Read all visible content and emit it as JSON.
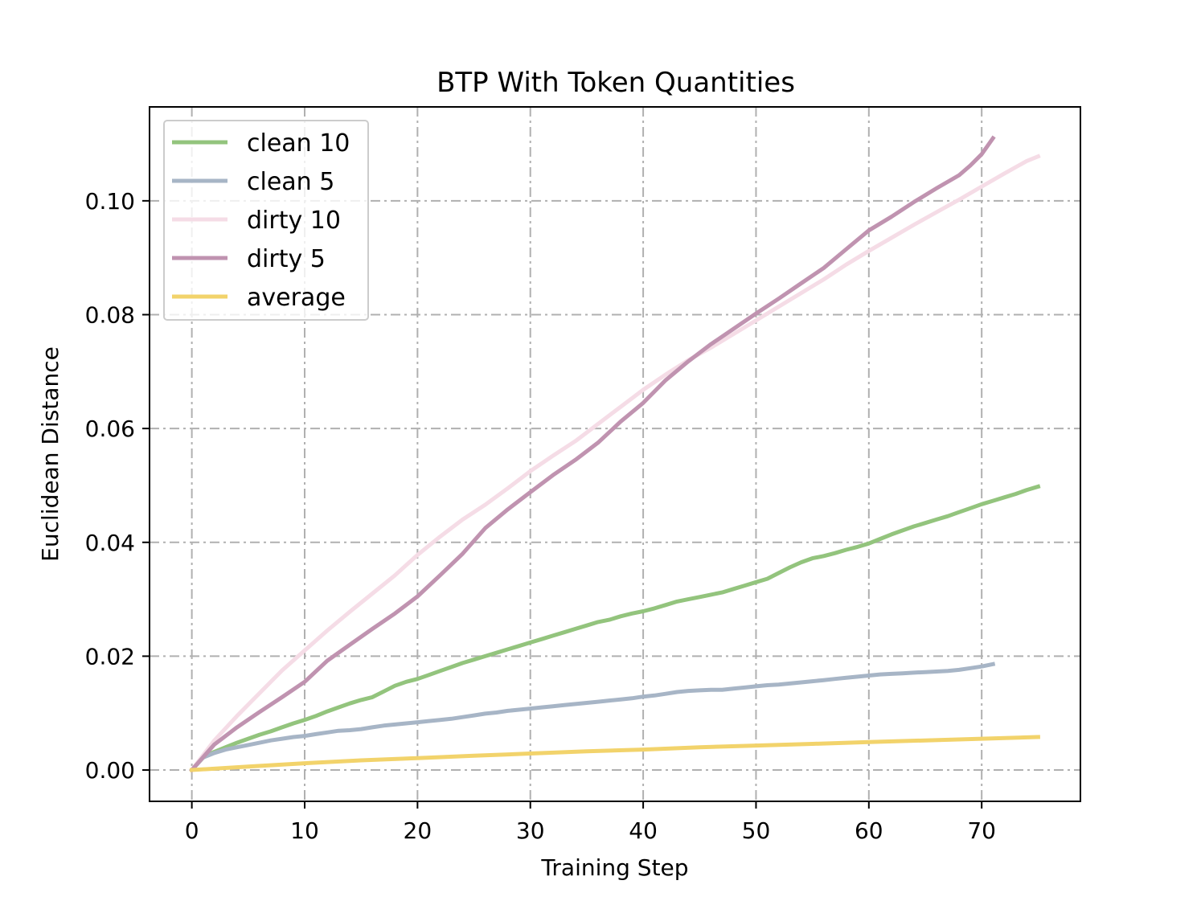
{
  "chart_data": {
    "type": "line",
    "title": "BTP With Token Quantities",
    "xlabel": "Training Step",
    "ylabel": "Euclidean Distance",
    "xlim": [
      -3.75,
      78.75
    ],
    "ylim": [
      -0.0055,
      0.1165
    ],
    "xticks": [
      0,
      10,
      20,
      30,
      40,
      50,
      60,
      70
    ],
    "xtick_labels": [
      "0",
      "10",
      "20",
      "30",
      "40",
      "50",
      "60",
      "70"
    ],
    "yticks": [
      0.0,
      0.02,
      0.04,
      0.06,
      0.08,
      0.1
    ],
    "ytick_labels": [
      "0.00",
      "0.02",
      "0.04",
      "0.06",
      "0.08",
      "0.10"
    ],
    "grid": true,
    "legend_position": "top-left",
    "series": [
      {
        "name": "clean 10",
        "color": "#93c47d",
        "x": [
          0,
          1,
          2,
          3,
          4,
          5,
          6,
          7,
          8,
          9,
          10,
          11,
          12,
          13,
          14,
          15,
          16,
          17,
          18,
          19,
          20,
          21,
          22,
          23,
          24,
          25,
          26,
          27,
          28,
          29,
          30,
          31,
          32,
          33,
          34,
          35,
          36,
          37,
          38,
          39,
          40,
          41,
          42,
          43,
          44,
          45,
          46,
          47,
          48,
          49,
          50,
          51,
          52,
          53,
          54,
          55,
          56,
          57,
          58,
          59,
          60,
          61,
          62,
          63,
          64,
          65,
          66,
          67,
          68,
          69,
          70,
          71,
          72,
          73,
          74,
          75
        ],
        "y": [
          0.0,
          0.0022,
          0.0032,
          0.004,
          0.0048,
          0.0055,
          0.0062,
          0.0068,
          0.0075,
          0.0082,
          0.0088,
          0.0095,
          0.0103,
          0.011,
          0.0117,
          0.0123,
          0.0128,
          0.0138,
          0.0148,
          0.0155,
          0.016,
          0.0167,
          0.0174,
          0.0181,
          0.0188,
          0.0194,
          0.02,
          0.0206,
          0.0212,
          0.0218,
          0.0224,
          0.023,
          0.0236,
          0.0242,
          0.0248,
          0.0254,
          0.026,
          0.0264,
          0.027,
          0.0275,
          0.0279,
          0.0284,
          0.029,
          0.0296,
          0.03,
          0.0304,
          0.0308,
          0.0312,
          0.0318,
          0.0324,
          0.033,
          0.0336,
          0.0346,
          0.0356,
          0.0365,
          0.0372,
          0.0376,
          0.0381,
          0.0387,
          0.0392,
          0.0398,
          0.0406,
          0.0414,
          0.0421,
          0.0428,
          0.0434,
          0.044,
          0.0446,
          0.0453,
          0.046,
          0.0467,
          0.0473,
          0.0479,
          0.0485,
          0.0492,
          0.0498
        ]
      },
      {
        "name": "clean 5",
        "color": "#a7b5c6",
        "x": [
          0,
          1,
          2,
          3,
          4,
          5,
          6,
          7,
          8,
          9,
          10,
          11,
          12,
          13,
          14,
          15,
          16,
          17,
          18,
          19,
          20,
          21,
          22,
          23,
          24,
          25,
          26,
          27,
          28,
          29,
          30,
          31,
          32,
          33,
          34,
          35,
          36,
          37,
          38,
          39,
          40,
          41,
          42,
          43,
          44,
          45,
          46,
          47,
          48,
          49,
          50,
          51,
          52,
          53,
          54,
          55,
          56,
          57,
          58,
          59,
          60,
          61,
          62,
          63,
          64,
          65,
          66,
          67,
          68,
          69,
          70,
          71
        ],
        "y": [
          0.0,
          0.0022,
          0.003,
          0.0036,
          0.004,
          0.0044,
          0.0048,
          0.0052,
          0.0055,
          0.0058,
          0.006,
          0.0063,
          0.0066,
          0.0069,
          0.007,
          0.0072,
          0.0075,
          0.0078,
          0.008,
          0.0082,
          0.0084,
          0.0086,
          0.0088,
          0.009,
          0.0093,
          0.0096,
          0.0099,
          0.0101,
          0.0104,
          0.0106,
          0.0108,
          0.011,
          0.0112,
          0.0114,
          0.0116,
          0.0118,
          0.012,
          0.0122,
          0.0124,
          0.0126,
          0.0129,
          0.0131,
          0.0134,
          0.0137,
          0.0139,
          0.014,
          0.0141,
          0.0141,
          0.0143,
          0.0145,
          0.0147,
          0.0149,
          0.015,
          0.0152,
          0.0154,
          0.0156,
          0.0158,
          0.016,
          0.0162,
          0.0164,
          0.0166,
          0.0168,
          0.0169,
          0.017,
          0.0171,
          0.0172,
          0.0173,
          0.0174,
          0.0176,
          0.0179,
          0.0182,
          0.0186
        ]
      },
      {
        "name": "dirty 10",
        "color": "#f5dce6",
        "x": [
          0,
          2,
          4,
          6,
          8,
          10,
          12,
          14,
          16,
          18,
          20,
          22,
          24,
          26,
          28,
          30,
          32,
          34,
          36,
          38,
          40,
          42,
          44,
          46,
          48,
          50,
          52,
          54,
          56,
          58,
          60,
          62,
          64,
          66,
          68,
          70,
          72,
          74,
          75
        ],
        "y": [
          0.0,
          0.0052,
          0.0095,
          0.0135,
          0.0175,
          0.021,
          0.0245,
          0.0278,
          0.031,
          0.0342,
          0.0378,
          0.041,
          0.044,
          0.0466,
          0.0495,
          0.0525,
          0.0552,
          0.0578,
          0.0608,
          0.0638,
          0.0668,
          0.0695,
          0.072,
          0.0742,
          0.0766,
          0.079,
          0.0814,
          0.0838,
          0.0862,
          0.0888,
          0.0912,
          0.0935,
          0.0958,
          0.098,
          0.1002,
          0.1025,
          0.1048,
          0.107,
          0.1078
        ]
      },
      {
        "name": "dirty 5",
        "color": "#c093b0",
        "x": [
          0,
          2,
          4,
          6,
          8,
          10,
          12,
          14,
          16,
          18,
          20,
          22,
          24,
          26,
          28,
          30,
          32,
          34,
          36,
          38,
          40,
          42,
          44,
          46,
          48,
          50,
          52,
          54,
          56,
          58,
          60,
          62,
          64,
          66,
          68,
          69,
          70,
          71
        ],
        "y": [
          0.0,
          0.0045,
          0.0075,
          0.0102,
          0.0128,
          0.0155,
          0.0192,
          0.022,
          0.0248,
          0.0275,
          0.0305,
          0.0342,
          0.038,
          0.0425,
          0.0458,
          0.0488,
          0.0518,
          0.0545,
          0.0575,
          0.0612,
          0.0645,
          0.0685,
          0.0718,
          0.0748,
          0.0775,
          0.0802,
          0.0828,
          0.0855,
          0.0882,
          0.0915,
          0.0948,
          0.0972,
          0.0998,
          0.1022,
          0.1045,
          0.1062,
          0.1082,
          0.111
        ]
      },
      {
        "name": "average",
        "color": "#f2d36b",
        "x": [
          0,
          5,
          10,
          15,
          20,
          25,
          30,
          35,
          40,
          45,
          50,
          55,
          60,
          65,
          70,
          75
        ],
        "y": [
          0.0,
          0.0006,
          0.0012,
          0.0017,
          0.0021,
          0.0025,
          0.0029,
          0.0033,
          0.0036,
          0.004,
          0.0043,
          0.0046,
          0.0049,
          0.0052,
          0.0055,
          0.0058
        ]
      }
    ]
  }
}
